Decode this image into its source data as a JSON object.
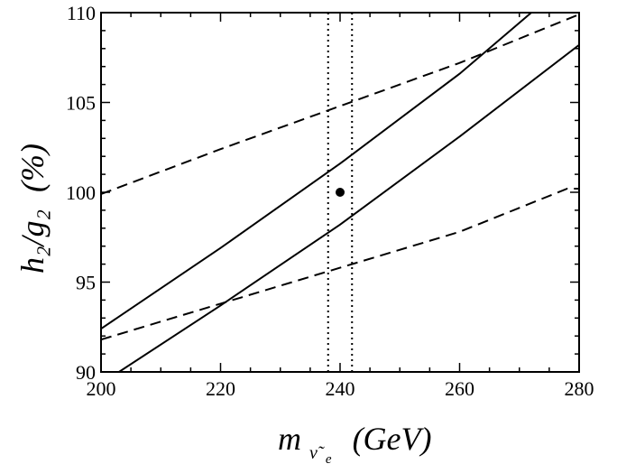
{
  "chart_data": {
    "type": "line",
    "title": "",
    "xlabel": "m",
    "xlabel_sub": "ν̃",
    "xlabel_subsub": "e",
    "xlabel_unit": "(GeV)",
    "ylabel": "h₂/g₂",
    "ylabel_unit": "(%)",
    "xlim": [
      200,
      280
    ],
    "ylim": [
      90,
      110
    ],
    "xticks": [
      200,
      220,
      240,
      260,
      280
    ],
    "yticks": [
      90,
      95,
      100,
      105,
      110
    ],
    "grid": false,
    "series": [
      {
        "style": "solid",
        "color": "#000000",
        "x": [
          200,
          220,
          240,
          260,
          272
        ],
        "y": [
          92.4,
          96.9,
          101.6,
          106.6,
          110.0
        ]
      },
      {
        "style": "solid",
        "color": "#000000",
        "x": [
          203,
          220,
          240,
          260,
          280
        ],
        "y": [
          90.0,
          93.7,
          98.2,
          103.1,
          108.2
        ]
      },
      {
        "style": "dashed",
        "color": "#000000",
        "x": [
          200,
          220,
          240,
          260,
          280
        ],
        "y": [
          99.9,
          102.4,
          104.8,
          107.2,
          109.9
        ]
      },
      {
        "style": "dashed",
        "color": "#000000",
        "x": [
          200,
          220,
          240,
          260,
          278,
          280
        ],
        "y": [
          91.8,
          93.8,
          95.8,
          97.8,
          100.2,
          100.2
        ]
      }
    ],
    "vlines": [
      {
        "x": 238,
        "style": "dotted",
        "color": "#000000"
      },
      {
        "x": 242,
        "style": "dotted",
        "color": "#000000"
      }
    ],
    "points": [
      {
        "x": 240,
        "y": 100,
        "color": "#000000"
      }
    ]
  }
}
